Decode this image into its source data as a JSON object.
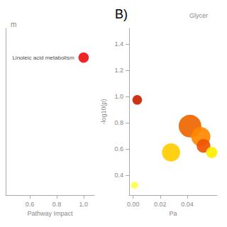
{
  "chart_data": [
    {
      "type": "scatter",
      "title": "m",
      "xlabel": "Pathway Impact",
      "x": [
        1.0
      ],
      "values": [
        1.38
      ],
      "sizes": [
        110
      ],
      "labels": [
        "Linoleic acid metabolism"
      ],
      "color": "#ee1111",
      "xlim": [
        0.42,
        1.08
      ],
      "ylim": [
        0.25,
        1.62
      ],
      "xticks": [
        0.6,
        0.8,
        {
          "value": 1.0,
          "label": "1.0"
        }
      ],
      "yticks": [],
      "tick_labels": "x",
      "grid": false
    },
    {
      "type": "scatter",
      "title": "B)",
      "subtitle": "Glycer",
      "xlabel": "Pa",
      "ylabel": "-log10(p)",
      "x": [
        0.001,
        0.003,
        0.028,
        0.042,
        0.05,
        0.052,
        0.058
      ],
      "values": [
        0.325,
        0.975,
        0.575,
        0.775,
        0.695,
        0.625,
        0.575
      ],
      "sizes": [
        55,
        95,
        340,
        530,
        380,
        195,
        130
      ],
      "colors": [
        "#ffff55",
        "#cc2200",
        "#ffcc00",
        "#ee6600",
        "#ff8800",
        "#ee5500",
        "#ffee00"
      ],
      "xlim": [
        -0.003,
        0.062
      ],
      "ylim": [
        0.25,
        1.52
      ],
      "xticks": [
        {
          "value": 0.0,
          "label": "0.00"
        },
        0.02,
        0.04
      ],
      "yticks": [
        0.4,
        0.6,
        0.8,
        {
          "value": 1.0,
          "label": "1.0"
        },
        1.2,
        1.4
      ],
      "grid": false
    }
  ]
}
